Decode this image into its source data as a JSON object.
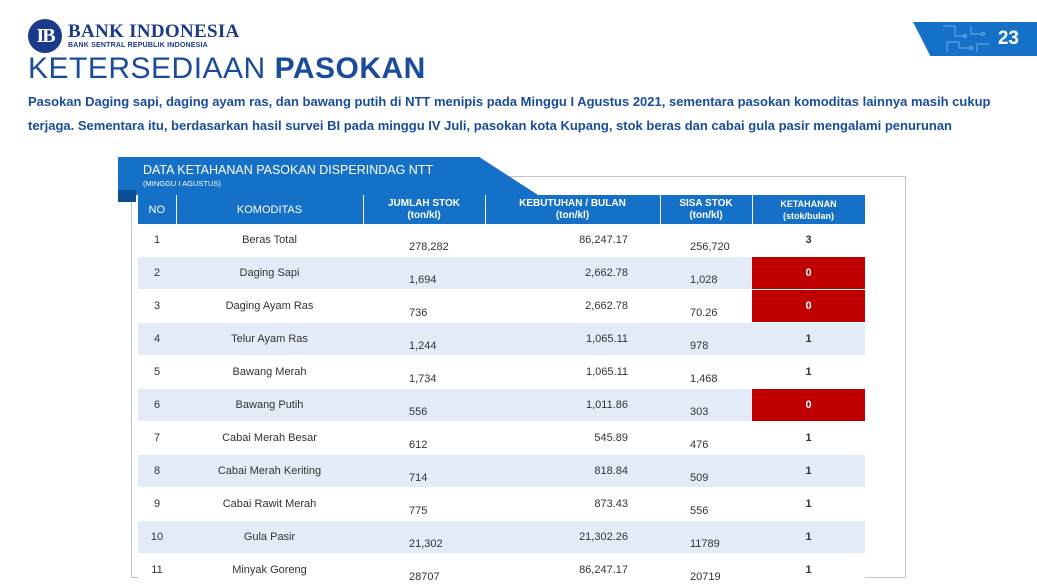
{
  "logo": {
    "mark": "IB",
    "name": "BANK INDONESIA",
    "subtitle": "BANK SENTRAL REPUBLIK INDONESIA"
  },
  "page_number": "23",
  "title": {
    "light": "KETERSEDIAAN ",
    "bold": "PASOKAN"
  },
  "summary": "Pasokan Daging sapi, daging ayam ras, dan bawang putih di NTT menipis pada Minggu I Agustus 2021, sementara pasokan komoditas lainnya masih cukup terjaga. Sementara itu, berdasarkan hasil survei BI pada minggu IV Juli, pasokan kota Kupang, stok beras dan cabai gula pasir mengalami penurunan",
  "table_title": "DATA KETAHANAN PASOKAN DISPERINDAG NTT",
  "table_subtitle": "(MINGGU I AGUSTUS)",
  "headers": {
    "no": "NO",
    "komoditas": "KOMODITAS",
    "jumlah_stok": "JUMLAH STOK",
    "jumlah_stok_unit": "(ton/kl)",
    "kebutuhan": "KEBUTUHAN / BULAN",
    "kebutuhan_unit": "(ton/kl)",
    "sisa_stok": "SISA STOK",
    "sisa_stok_unit": "(ton/kl)",
    "ketahanan": "KETAHANAN",
    "ketahanan_unit": "(stok/bulan)"
  },
  "rows": [
    {
      "no": "1",
      "komoditas": "Beras Total",
      "jumlah_stok": "278,282",
      "kebutuhan": "86,247.17",
      "sisa_stok": "256,720",
      "ketahanan": "3",
      "alert": false
    },
    {
      "no": "2",
      "komoditas": "Daging Sapi",
      "jumlah_stok": "1,694",
      "kebutuhan": "2,662.78",
      "sisa_stok": "1,028",
      "ketahanan": "0",
      "alert": true
    },
    {
      "no": "3",
      "komoditas": "Daging Ayam Ras",
      "jumlah_stok": "736",
      "kebutuhan": "2,662.78",
      "sisa_stok": "70.26",
      "ketahanan": "0",
      "alert": true
    },
    {
      "no": "4",
      "komoditas": "Telur Ayam Ras",
      "jumlah_stok": "1,244",
      "kebutuhan": "1,065.11",
      "sisa_stok": "978",
      "ketahanan": "1",
      "alert": false
    },
    {
      "no": "5",
      "komoditas": "Bawang Merah",
      "jumlah_stok": "1,734",
      "kebutuhan": "1,065.11",
      "sisa_stok": "1,468",
      "ketahanan": "1",
      "alert": false
    },
    {
      "no": "6",
      "komoditas": "Bawang Putih",
      "jumlah_stok": "556",
      "kebutuhan": "1,011.86",
      "sisa_stok": "303",
      "ketahanan": "0",
      "alert": true
    },
    {
      "no": "7",
      "komoditas": "Cabai Merah Besar",
      "jumlah_stok": "612",
      "kebutuhan": "545.89",
      "sisa_stok": "476",
      "ketahanan": "1",
      "alert": false
    },
    {
      "no": "8",
      "komoditas": "Cabai Merah Keriting",
      "jumlah_stok": "714",
      "kebutuhan": "818.84",
      "sisa_stok": "509",
      "ketahanan": "1",
      "alert": false
    },
    {
      "no": "9",
      "komoditas": "Cabai Rawit Merah",
      "jumlah_stok": "775",
      "kebutuhan": "873.43",
      "sisa_stok": "556",
      "ketahanan": "1",
      "alert": false
    },
    {
      "no": "10",
      "komoditas": "Gula Pasir",
      "jumlah_stok": "21,302",
      "kebutuhan": "21,302.26",
      "sisa_stok": "11789",
      "ketahanan": "1",
      "alert": false
    },
    {
      "no": "11",
      "komoditas": "Minyak Goreng",
      "jumlah_stok": "28707",
      "kebutuhan": "86,247.17",
      "sisa_stok": "20719",
      "ketahanan": "1",
      "alert": false
    }
  ],
  "colors": {
    "brand_blue": "#1570c7",
    "title_blue": "#1a4c9c",
    "alert_red": "#c00000",
    "row_alt": "#e3ebf7"
  }
}
